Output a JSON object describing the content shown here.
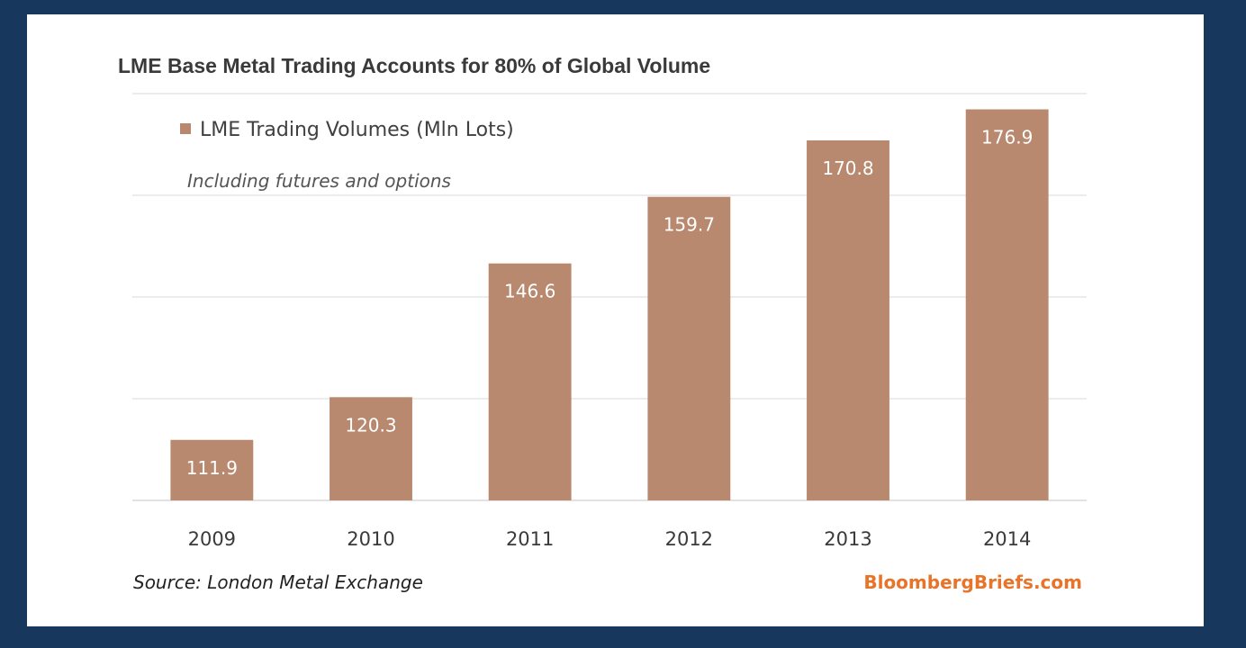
{
  "chart_data": {
    "type": "bar",
    "title": "LME Base Metal Trading Accounts for 80% of Global Volume",
    "subtitle": "Including futures and options",
    "categories": [
      "2009",
      "2010",
      "2011",
      "2012",
      "2013",
      "2014"
    ],
    "series": [
      {
        "name": "LME Trading Volumes (Mln Lots)",
        "values": [
          111.9,
          120.3,
          146.6,
          159.7,
          170.8,
          176.9
        ],
        "color": "#b8896e"
      }
    ],
    "data_labels": [
      "111.9",
      "120.3",
      "146.6",
      "159.7",
      "170.8",
      "176.9"
    ],
    "ylim": [
      100,
      180
    ],
    "grid": true,
    "legend_position": "top-left",
    "y_axis_labels_visible": false,
    "source": "Source: London Metal Exchange",
    "brand": "BloombergBriefs.com"
  },
  "colors": {
    "background": "#17385c",
    "panel": "#ffffff",
    "bar": "#b8896e",
    "gridline": "#e6e6e6",
    "brand": "#e8742a"
  }
}
